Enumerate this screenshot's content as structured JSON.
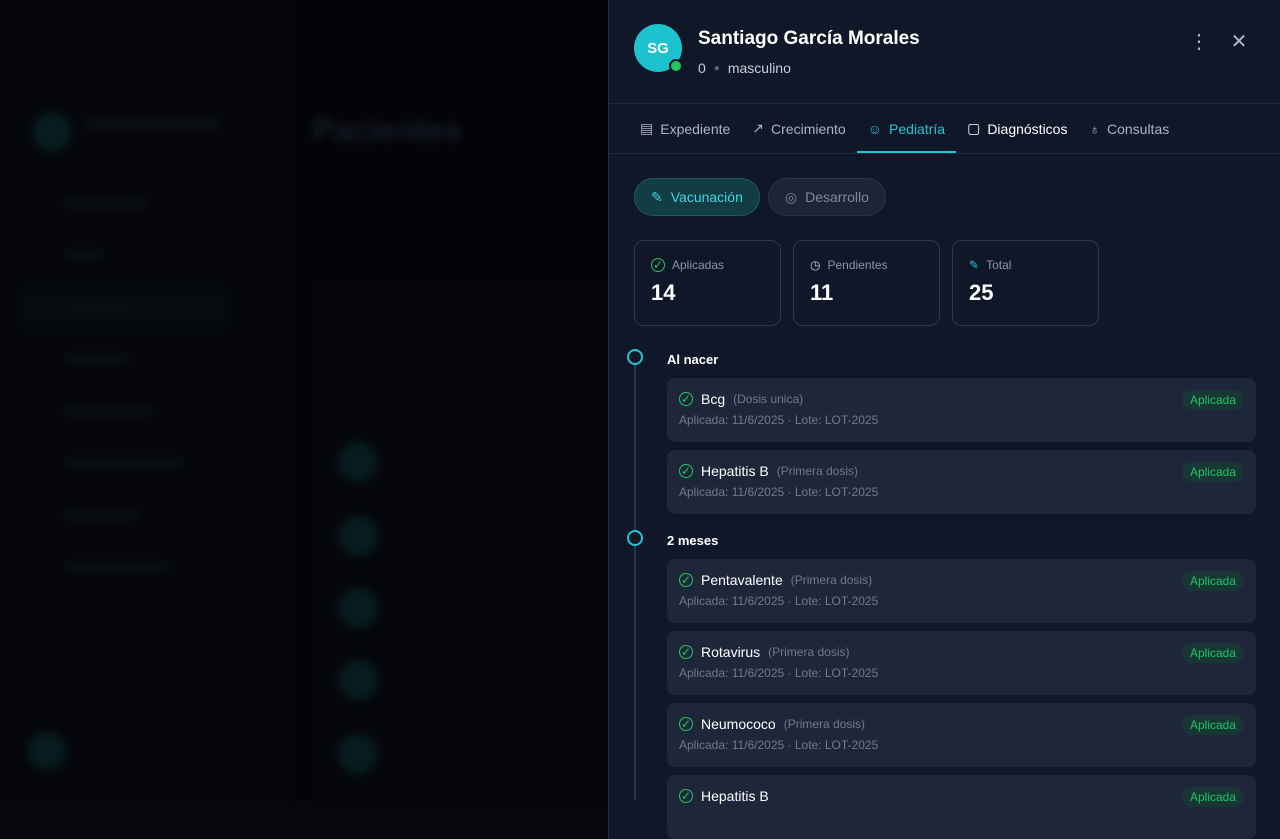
{
  "background": {
    "page_title": "Pacientes"
  },
  "patient": {
    "initials": "SG",
    "name": "Santiago García Morales",
    "age": "0",
    "sex": "masculino",
    "online_color": "#22c55e"
  },
  "header": {
    "more_icon": "more-vertical-icon",
    "close_icon": "close-icon"
  },
  "tabs": [
    {
      "label": "Expediente",
      "icon": "clipboard-icon"
    },
    {
      "label": "Crecimiento",
      "icon": "trending-up-icon"
    },
    {
      "label": "Pediatría",
      "icon": "baby-icon",
      "active": true
    },
    {
      "label": "Diagnósticos",
      "icon": "file-icon"
    },
    {
      "label": "Consultas",
      "icon": "stethoscope-icon"
    }
  ],
  "subtabs": [
    {
      "label": "Vacunación",
      "icon": "syringe-icon",
      "active": true
    },
    {
      "label": "Desarrollo",
      "icon": "brain-icon"
    }
  ],
  "stats": [
    {
      "label": "Aplicadas",
      "value": "14",
      "icon": "check-circle-icon"
    },
    {
      "label": "Pendientes",
      "value": "11",
      "icon": "clock-icon"
    },
    {
      "label": "Total",
      "value": "25",
      "icon": "syringe-icon"
    }
  ],
  "accent": "#22c5d1",
  "timeline": [
    {
      "title": "Al nacer",
      "vaccines": [
        {
          "name": "Bcg",
          "dose": "(Dosis unica)",
          "meta": "Aplicada: 11/6/2025 · Lote: LOT-2025",
          "status": "Aplicada"
        },
        {
          "name": "Hepatitis B",
          "dose": "(Primera dosis)",
          "meta": "Aplicada: 11/6/2025 · Lote: LOT-2025",
          "status": "Aplicada"
        }
      ]
    },
    {
      "title": "2 meses",
      "vaccines": [
        {
          "name": "Pentavalente",
          "dose": "(Primera dosis)",
          "meta": "Aplicada: 11/6/2025 · Lote: LOT-2025",
          "status": "Aplicada"
        },
        {
          "name": "Rotavirus",
          "dose": "(Primera dosis)",
          "meta": "Aplicada: 11/6/2025 · Lote: LOT-2025",
          "status": "Aplicada"
        },
        {
          "name": "Neumococo",
          "dose": "(Primera dosis)",
          "meta": "Aplicada: 11/6/2025 · Lote: LOT-2025",
          "status": "Aplicada"
        },
        {
          "name": "Hepatitis B",
          "dose": "",
          "meta": "",
          "status": "Aplicada"
        }
      ]
    }
  ]
}
